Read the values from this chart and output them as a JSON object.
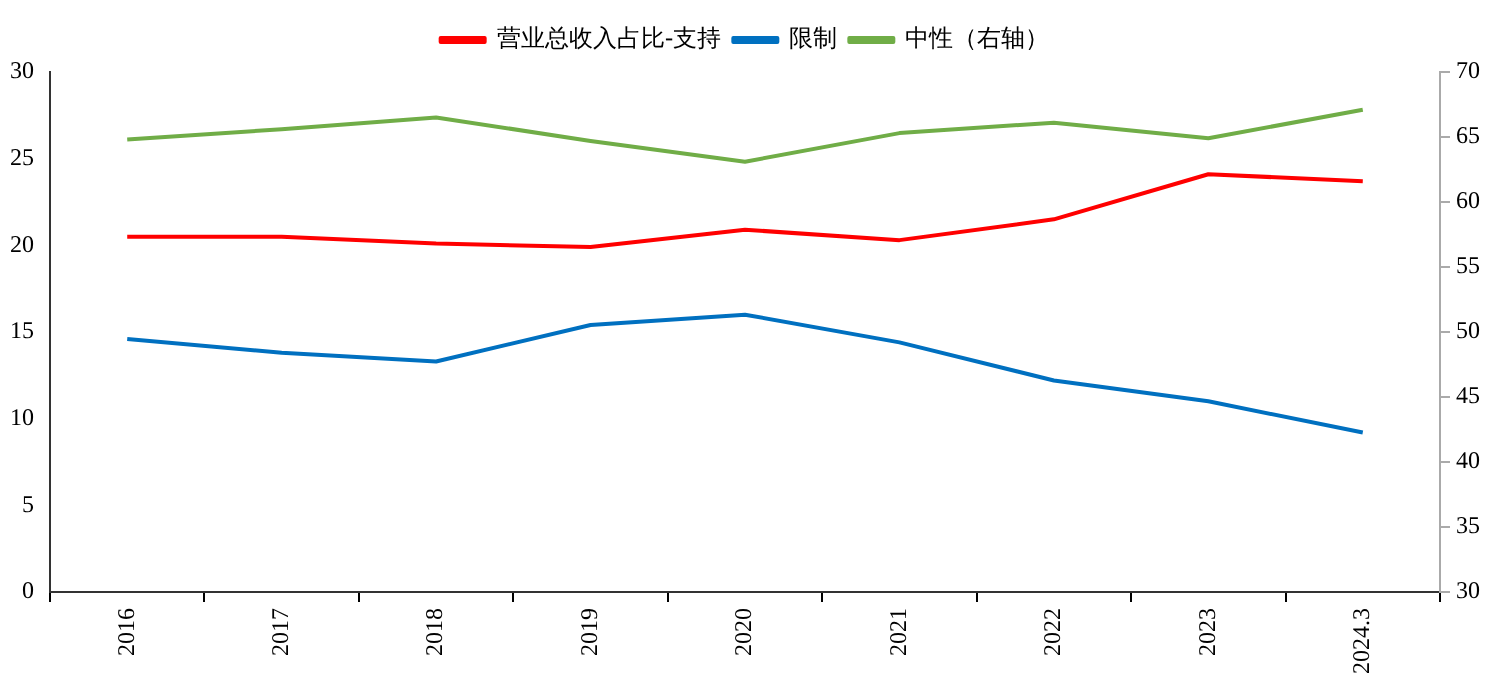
{
  "chart_data": {
    "type": "line",
    "categories": [
      "2016",
      "2017",
      "2018",
      "2019",
      "2020",
      "2021",
      "2022",
      "2023",
      "2024.3"
    ],
    "series": [
      {
        "name": "营业总收入占比-支持",
        "color": "#ff0000",
        "values": [
          20.5,
          20.5,
          20.1,
          19.9,
          20.9,
          20.3,
          21.5,
          24.1,
          23.7
        ]
      },
      {
        "name": "限制",
        "color": "#0070c0",
        "values": [
          14.6,
          13.8,
          13.3,
          15.4,
          16.0,
          14.4,
          12.2,
          11.0,
          9.2
        ]
      },
      {
        "name": "中性（右轴）",
        "color": "#70ad47",
        "axis": "y2",
        "values": [
          64.8,
          65.6,
          66.5,
          64.7,
          63.1,
          65.3,
          66.1,
          64.9,
          67.1
        ]
      }
    ],
    "ylim": [
      0,
      30
    ],
    "yticks": [
      0,
      5,
      10,
      15,
      20,
      25,
      30
    ],
    "y2lim": [
      30,
      70
    ],
    "y2ticks": [
      30,
      35,
      40,
      45,
      50,
      55,
      60,
      65,
      70
    ],
    "grid": false,
    "legend": "top",
    "marker": "none",
    "line_style": "solid"
  }
}
